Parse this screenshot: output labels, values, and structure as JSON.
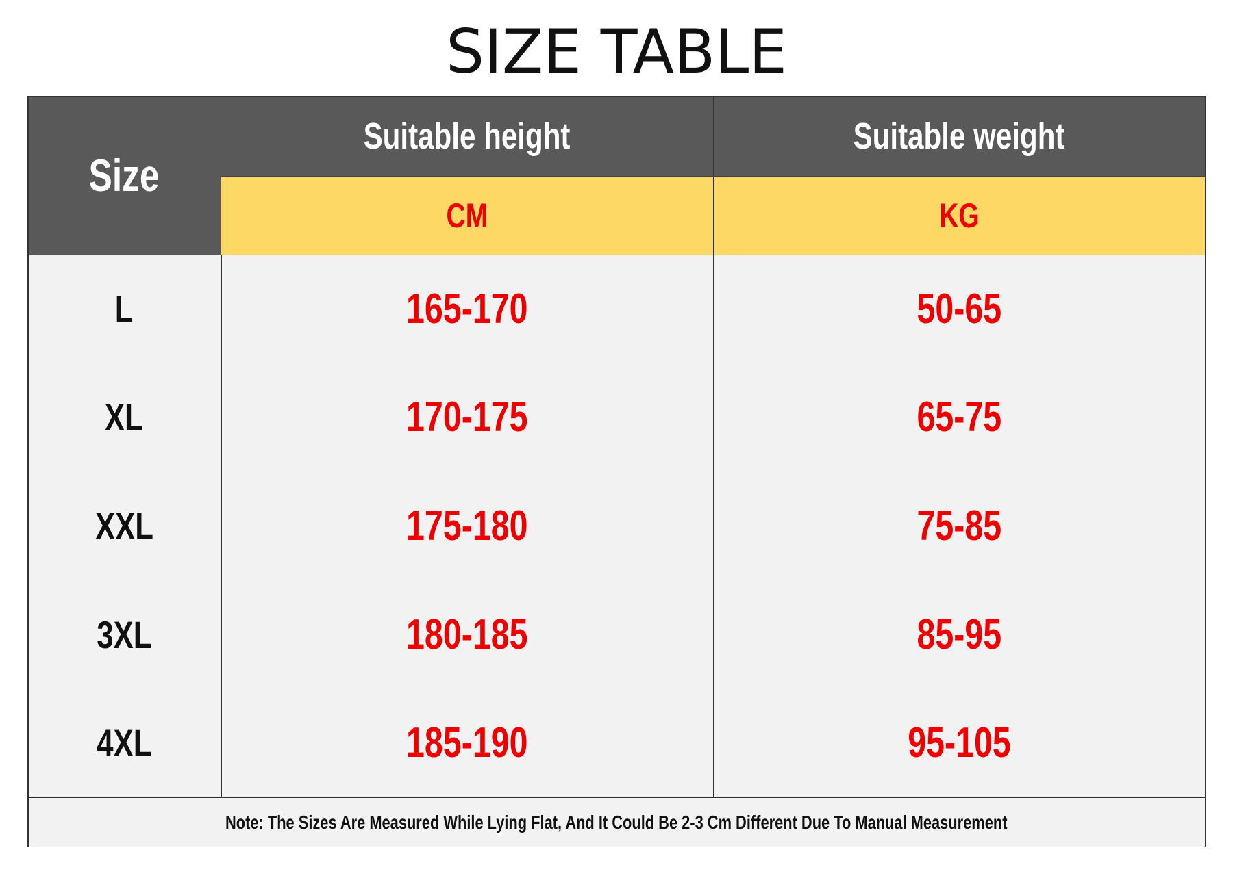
{
  "title": "SIZE TABLE",
  "table": {
    "corner": "Size",
    "headers": [
      "Suitable height",
      "Suitable weight"
    ],
    "units": [
      "CM",
      "KG"
    ],
    "rows": [
      [
        "L",
        "165-170",
        "50-65"
      ],
      [
        "XL",
        "170-175",
        "65-75"
      ],
      [
        "XXL",
        "175-180",
        "75-85"
      ],
      [
        "3XL",
        "180-185",
        "85-95"
      ],
      [
        "4XL",
        "185-190",
        "95-105"
      ]
    ],
    "note": "Note: The Sizes Are Measured While Lying Flat, And It Could Be 2-3 Cm Different Due To Manual Measurement"
  }
}
